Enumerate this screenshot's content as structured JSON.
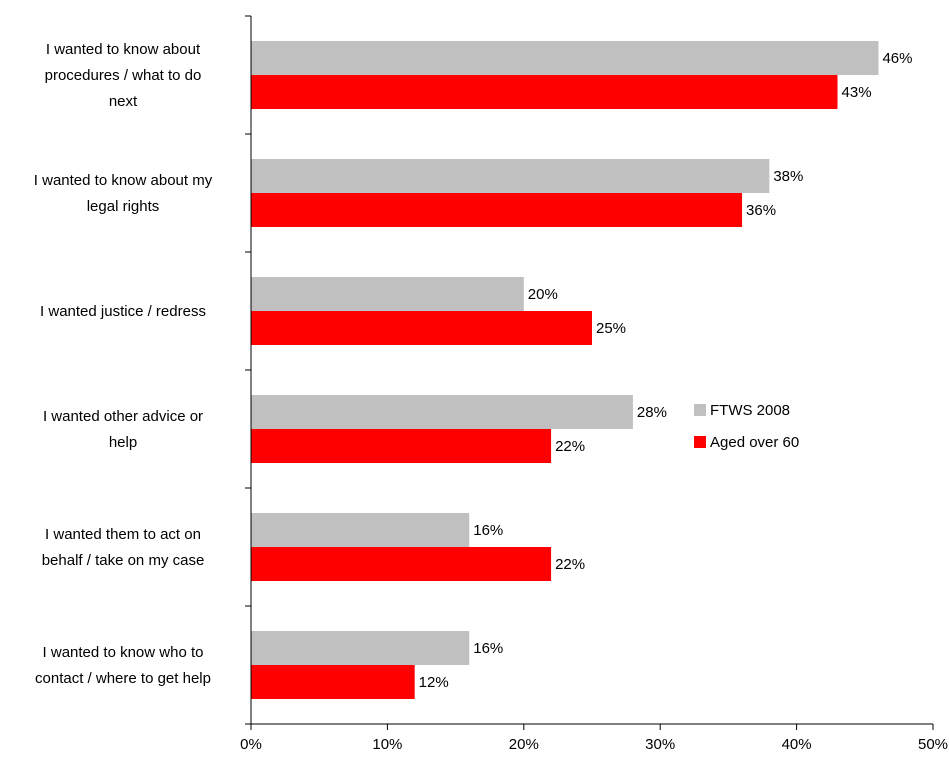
{
  "chart_data": {
    "type": "bar",
    "orientation": "horizontal",
    "title": "",
    "xlabel": "",
    "ylabel": "",
    "xlim": [
      0,
      50
    ],
    "x_ticks": [
      "0%",
      "10%",
      "20%",
      "30%",
      "40%",
      "50%"
    ],
    "grid": false,
    "legend_position": "right",
    "categories": [
      [
        "I wanted to know about",
        "procedures / what to do",
        "next"
      ],
      [
        "I wanted to know about my",
        "legal rights"
      ],
      [
        "I wanted justice / redress"
      ],
      [
        "I wanted other advice or",
        "help"
      ],
      [
        "I wanted them to act on",
        "behalf / take on my case"
      ],
      [
        "I wanted to know who to",
        "contact / where to get help"
      ]
    ],
    "series": [
      {
        "name": "FTWS 2008",
        "color": "#c0c0c0",
        "values": [
          46,
          38,
          20,
          28,
          16,
          16
        ],
        "labels": [
          "46%",
          "38%",
          "20%",
          "28%",
          "16%",
          "16%"
        ]
      },
      {
        "name": "Aged over 60",
        "color": "#ff0000",
        "values": [
          43,
          36,
          25,
          22,
          22,
          12
        ],
        "labels": [
          "43%",
          "36%",
          "25%",
          "22%",
          "22%",
          "12%"
        ]
      }
    ]
  }
}
